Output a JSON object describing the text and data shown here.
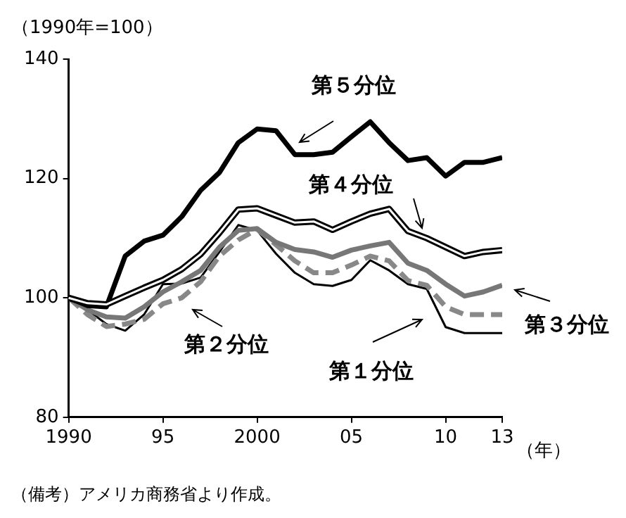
{
  "chart_data": {
    "type": "line",
    "ylabel": "（1990年=100）",
    "xlabel": "（年）",
    "annotations": [
      "（備考）アメリカ商務省より作成。",
      {
        "text": "第５分位",
        "x": 2002,
        "y": 124
      },
      {
        "text": "第４分位",
        "x": 2009,
        "y": 110
      },
      {
        "text": "第３分位",
        "x": 2013,
        "y": 102.1
      },
      {
        "text": "第２分位",
        "x": 1996,
        "y": 100
      },
      {
        "text": "第１分位",
        "x": 2010,
        "y": 95.1
      }
    ],
    "x": [
      1990,
      1991,
      1992,
      1993,
      1994,
      1995,
      1996,
      1997,
      1998,
      1999,
      2000,
      2001,
      2002,
      2003,
      2004,
      2005,
      2006,
      2007,
      2008,
      2009,
      2010,
      2011,
      2012,
      2013
    ],
    "xlim": [
      1990,
      2013
    ],
    "xticks": [
      1990,
      {
        "value": 1995,
        "label": "95"
      },
      2000,
      {
        "value": 2005,
        "label": "05"
      },
      {
        "value": 2010,
        "label": "10"
      },
      {
        "value": 2013,
        "label": "13"
      }
    ],
    "ylim": [
      80,
      140
    ],
    "yticks": [
      80,
      100,
      120,
      140
    ],
    "grid": false,
    "legend": false,
    "marker": "none",
    "series": [
      {
        "color": "#000000",
        "line_style": "solid",
        "values": [
          100,
          98.7,
          98.5,
          107,
          109.5,
          110.5,
          113.6,
          118,
          121,
          126,
          128.3,
          128,
          124,
          124,
          124.4,
          127,
          129.5,
          126,
          123,
          123.5,
          120.4,
          122.7,
          122.7,
          123.5
        ]
      },
      {
        "color": "#000000",
        "line_style": "solid",
        "values": [
          100,
          99.1,
          98.9,
          100.3,
          101.7,
          103,
          104.8,
          107.3,
          110.9,
          114.8,
          115,
          113.8,
          112.6,
          112.8,
          111.4,
          112.8,
          114.1,
          114.9,
          111.2,
          110,
          108.5,
          107,
          107.7,
          108
        ]
      },
      {
        "color": "#777777",
        "line_style": "solid",
        "values": [
          100,
          98,
          96.8,
          96.6,
          98.5,
          101,
          102.7,
          104.6,
          108.5,
          111.3,
          111.6,
          109.3,
          108.1,
          107.7,
          106.8,
          108,
          108.7,
          109.3,
          105.8,
          104.6,
          102.3,
          100.3,
          101,
          102.1
        ]
      },
      {
        "color": "#888888",
        "line_style": "dashed",
        "values": [
          100,
          97.2,
          95.2,
          95.6,
          96.4,
          99,
          100,
          102.7,
          107,
          109.7,
          111.5,
          108.9,
          106.2,
          104.2,
          104.2,
          105.5,
          107,
          106.2,
          102.9,
          102.1,
          98.5,
          97.2,
          97.2,
          97.2
        ]
      },
      {
        "color": "#000000",
        "line_style": "solid",
        "values": [
          100,
          98,
          95.6,
          94.5,
          97.2,
          102.3,
          102.4,
          103.4,
          107.7,
          112.2,
          111.3,
          107.4,
          104.2,
          102.3,
          102,
          103,
          106.3,
          104.6,
          102.3,
          101.5,
          95.1,
          94.1,
          94.1,
          94.1
        ]
      }
    ]
  }
}
